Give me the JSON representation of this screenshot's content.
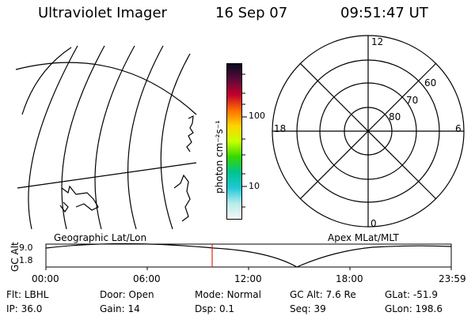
{
  "header": {
    "title": "Ultraviolet Imager",
    "date": "16 Sep 07",
    "time": "09:51:47 UT"
  },
  "panels": {
    "geo_label": "Geographic Lat/Lon",
    "apex_label": "Apex MLat/MLT"
  },
  "colorbar": {
    "unit_label": "photon cm⁻²s⁻¹",
    "ticks": [
      {
        "value": 100,
        "label": "100"
      },
      {
        "value": 10,
        "label": "10"
      }
    ],
    "colors": [
      "#0b0b1e",
      "#5a0a3a",
      "#c4002d",
      "#ff6f00",
      "#ffd400",
      "#c8ff00",
      "#36d700",
      "#00c38d",
      "#20c8d8",
      "#b7ecec",
      "#f6f6f6"
    ]
  },
  "polar": {
    "mlt_labels": {
      "top": "12",
      "right": "6",
      "bottom": "0",
      "left": "18"
    },
    "lat_labels": [
      "60",
      "70",
      "80"
    ]
  },
  "altitude_plot": {
    "ylabel": "GC Alt",
    "yticks": [
      "9.0",
      "1.8"
    ],
    "xticks": [
      "00:00",
      "06:00",
      "12:00",
      "18:00",
      "23:59"
    ],
    "cursor_color": "#e0261b"
  },
  "status": {
    "row1": [
      {
        "key": "Flt:",
        "value": "LBHL"
      },
      {
        "key": "Door:",
        "value": "Open"
      },
      {
        "key": "Mode:",
        "value": "Normal"
      },
      {
        "key": "GC Alt:",
        "value": "7.6 Re"
      },
      {
        "key": "GLat:",
        "value": "-51.9"
      }
    ],
    "row2": [
      {
        "key": "IP:",
        "value": "36.0"
      },
      {
        "key": "Gain:",
        "value": "14"
      },
      {
        "key": "Dsp:",
        "value": "0.1"
      },
      {
        "key": "Seq:",
        "value": "39"
      },
      {
        "key": "GLon:",
        "value": "198.6"
      }
    ]
  }
}
